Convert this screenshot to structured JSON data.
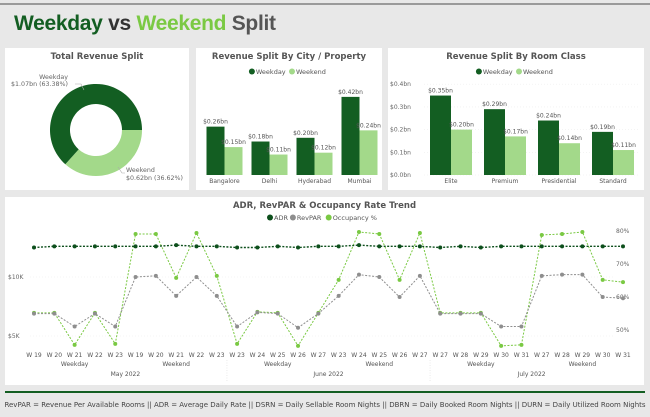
{
  "header": {
    "title_part1": "Weekday",
    "title_part2": "vs",
    "title_part3": "Weekend",
    "title_part4": "Split"
  },
  "colors": {
    "weekday": "#135e22",
    "weekend": "#a3d98a",
    "adr": "#0d4f1c",
    "revpar": "#8e8e8e",
    "occupancy": "#7ac943"
  },
  "donut": {
    "title": "Total Revenue Split",
    "chart_data": {
      "type": "pie",
      "slices": [
        {
          "name": "Weekday",
          "value": 1.07,
          "percent": 63.38,
          "label": "$1.07bn (63.38%)"
        },
        {
          "name": "Weekend",
          "value": 0.62,
          "percent": 36.62,
          "label": "$0.62bn (36.62%)"
        }
      ]
    }
  },
  "city": {
    "title": "Revenue Split By City / Property",
    "chart_data": {
      "type": "bar",
      "categories": [
        "Bangalore",
        "Delhi",
        "Hyderabad",
        "Mumbai"
      ],
      "series": [
        {
          "name": "Weekday",
          "values": [
            0.26,
            0.18,
            0.2,
            0.42
          ],
          "labels": [
            "$0.26bn",
            "$0.18bn",
            "$0.20bn",
            "$0.42bn"
          ]
        },
        {
          "name": "Weekend",
          "values": [
            0.15,
            0.11,
            0.12,
            0.24
          ],
          "labels": [
            "$0.15bn",
            "$0.11bn",
            "$0.12bn",
            "$0.24bn"
          ]
        }
      ]
    }
  },
  "room": {
    "title": "Revenue Split By Room Class",
    "chart_data": {
      "type": "bar",
      "categories": [
        "Elite",
        "Premium",
        "Presidential",
        "Standard"
      ],
      "ylim": [
        0,
        0.4
      ],
      "yticks": [
        "$0.0bn",
        "$0.1bn",
        "$0.2bn",
        "$0.3bn",
        "$0.4bn"
      ],
      "series": [
        {
          "name": "Weekday",
          "values": [
            0.35,
            0.29,
            0.24,
            0.19
          ],
          "labels": [
            "$0.35bn",
            "$0.29bn",
            "$0.24bn",
            "$0.19bn"
          ]
        },
        {
          "name": "Weekend",
          "values": [
            0.2,
            0.17,
            0.14,
            0.11
          ],
          "labels": [
            "$0.20bn",
            "$0.17bn",
            "$0.14bn",
            "$0.11bn"
          ]
        }
      ]
    }
  },
  "trend": {
    "title": "ADR, RevPAR & Occupancy Rate Trend",
    "chart_data": {
      "type": "line",
      "x_weeks": [
        "W 19",
        "W 20",
        "W 21",
        "W 22",
        "W 23",
        "W 19",
        "W 20",
        "W 21",
        "W 22",
        "W 23",
        "W 23",
        "W 24",
        "W 25",
        "W 26",
        "W 27",
        "W 23",
        "W 24",
        "W 25",
        "W 26",
        "W 27",
        "W 27",
        "W 28",
        "W 29",
        "W 30",
        "W 31",
        "W 27",
        "W 28",
        "W 29",
        "W 30",
        "W 31"
      ],
      "x_groups": [
        "Weekday",
        "Weekend",
        "Weekday",
        "Weekend",
        "Weekday",
        "Weekend"
      ],
      "x_months": [
        "May 2022",
        "June 2022",
        "July 2022"
      ],
      "y_left_ticks": [
        "$5K",
        "$10K"
      ],
      "y_left_range": [
        4.5,
        13.5
      ],
      "y_right_ticks": [
        "50%",
        "60%",
        "70%",
        "80%"
      ],
      "y_right_range": [
        45,
        81
      ],
      "series": [
        {
          "name": "ADR",
          "axis": "left",
          "values": [
            12.5,
            12.6,
            12.6,
            12.6,
            12.6,
            12.6,
            12.6,
            12.7,
            12.6,
            12.6,
            12.5,
            12.5,
            12.6,
            12.5,
            12.6,
            12.6,
            12.7,
            12.6,
            12.6,
            12.6,
            12.5,
            12.6,
            12.5,
            12.6,
            12.6,
            12.6,
            12.6,
            12.6,
            12.6,
            12.6
          ]
        },
        {
          "name": "RevPAR",
          "axis": "left",
          "values": [
            6.9,
            6.9,
            5.8,
            6.9,
            5.8,
            10.0,
            10.1,
            8.4,
            10.0,
            8.4,
            5.8,
            7.0,
            6.9,
            5.7,
            6.9,
            8.4,
            10.2,
            10.0,
            8.3,
            10.1,
            6.9,
            6.9,
            6.9,
            5.8,
            5.8,
            10.1,
            10.2,
            10.2,
            8.3,
            8.2
          ]
        },
        {
          "name": "Occupancy %",
          "axis": "right",
          "values": [
            55.2,
            55.2,
            45.5,
            55.2,
            45.8,
            79.1,
            79.1,
            65.8,
            79.4,
            66.4,
            45.8,
            55.5,
            55.2,
            45.2,
            55.2,
            65.2,
            79.7,
            79.1,
            65.2,
            79.4,
            55.2,
            55.2,
            55.2,
            45.2,
            45.5,
            78.8,
            79.1,
            79.7,
            65.2,
            64.5
          ]
        }
      ]
    }
  },
  "footer": "RevPAR = Revenue Per Available Rooms  ||  ADR = Average Daily Rate  ||  DSRN = Daily Sellable Room Nights  ||  DBRN = Daily Booked Room Nights  ||  DURN = Daily Utilized Room Nights"
}
